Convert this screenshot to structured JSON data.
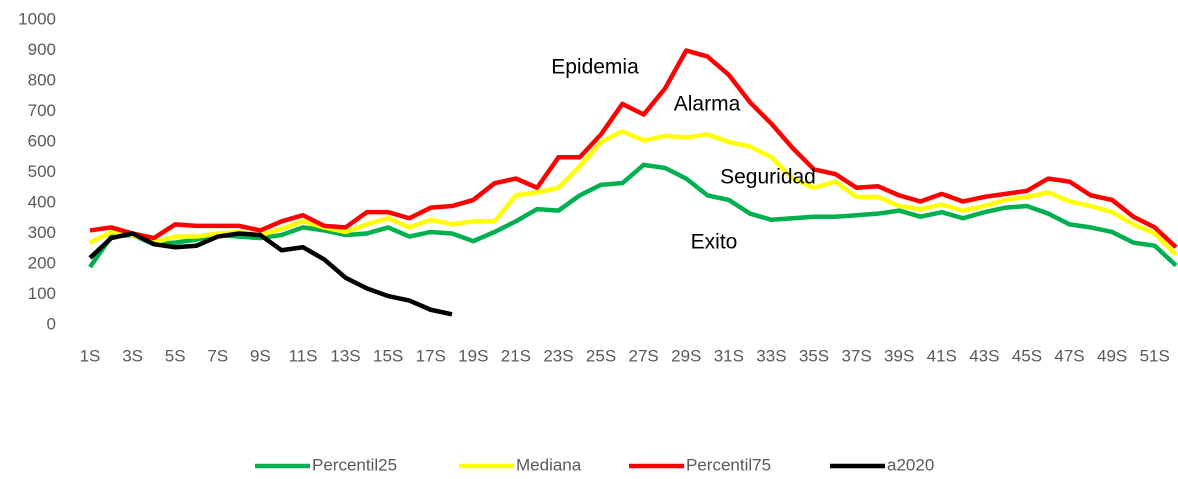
{
  "chart_data": {
    "type": "line",
    "categories": [
      "1S",
      null,
      "3S",
      null,
      "5S",
      null,
      "7S",
      null,
      "9S",
      null,
      "11S",
      null,
      "13S",
      null,
      "15S",
      null,
      "17S",
      null,
      "19S",
      null,
      "21S",
      null,
      "23S",
      null,
      "25S",
      null,
      "27S",
      null,
      "29S",
      null,
      "31S",
      null,
      "33S",
      null,
      "35S",
      null,
      "37S",
      null,
      "39S",
      null,
      "41S",
      null,
      "43S",
      null,
      "45S",
      null,
      "47S",
      null,
      "49S",
      null,
      "51S",
      null
    ],
    "series": [
      {
        "name": "Percentil25",
        "color": "#00b050",
        "values": [
          190,
          290,
          295,
          265,
          270,
          280,
          295,
          290,
          285,
          295,
          320,
          310,
          295,
          300,
          320,
          290,
          305,
          300,
          275,
          305,
          340,
          380,
          375,
          425,
          460,
          465,
          525,
          515,
          480,
          425,
          410,
          365,
          345,
          350,
          355,
          355,
          360,
          365,
          375,
          355,
          370,
          350,
          370,
          385,
          390,
          365,
          330,
          320,
          305,
          270,
          260,
          195
        ]
      },
      {
        "name": "Mediana",
        "color": "#ffff00",
        "values": [
          270,
          305,
          295,
          270,
          290,
          290,
          300,
          305,
          295,
          315,
          340,
          320,
          305,
          330,
          350,
          320,
          345,
          330,
          340,
          340,
          425,
          435,
          450,
          520,
          600,
          635,
          605,
          620,
          615,
          625,
          600,
          585,
          550,
          480,
          450,
          470,
          420,
          420,
          390,
          380,
          395,
          375,
          390,
          410,
          420,
          435,
          405,
          390,
          370,
          330,
          300,
          230
        ]
      },
      {
        "name": "Percentil75",
        "color": "#ff0000",
        "values": [
          310,
          320,
          300,
          285,
          330,
          325,
          325,
          325,
          310,
          340,
          360,
          325,
          320,
          370,
          370,
          350,
          385,
          390,
          410,
          465,
          480,
          450,
          550,
          550,
          625,
          725,
          690,
          775,
          900,
          880,
          820,
          730,
          660,
          580,
          510,
          495,
          450,
          455,
          425,
          405,
          430,
          405,
          420,
          430,
          440,
          480,
          470,
          425,
          410,
          355,
          320,
          255
        ]
      },
      {
        "name": "a2020",
        "color": "#000000",
        "values": [
          220,
          285,
          300,
          265,
          255,
          260,
          290,
          300,
          295,
          245,
          255,
          215,
          155,
          120,
          95,
          80,
          50,
          35,
          null,
          null,
          null,
          null,
          null,
          null,
          null,
          null,
          null,
          null,
          null,
          null,
          null,
          null,
          null,
          null,
          null,
          null,
          null,
          null,
          null,
          null,
          null,
          null,
          null,
          null,
          null,
          null,
          null,
          null,
          null,
          null,
          null,
          null
        ]
      }
    ],
    "annotations": [
      "Epidemia",
      "Alarma",
      "Seguridad",
      "Exito"
    ],
    "ylim": [
      0,
      1000
    ],
    "yticks": [
      0,
      100,
      200,
      300,
      400,
      500,
      600,
      700,
      800,
      900,
      1000
    ],
    "grid": false,
    "legend": "bottom"
  }
}
